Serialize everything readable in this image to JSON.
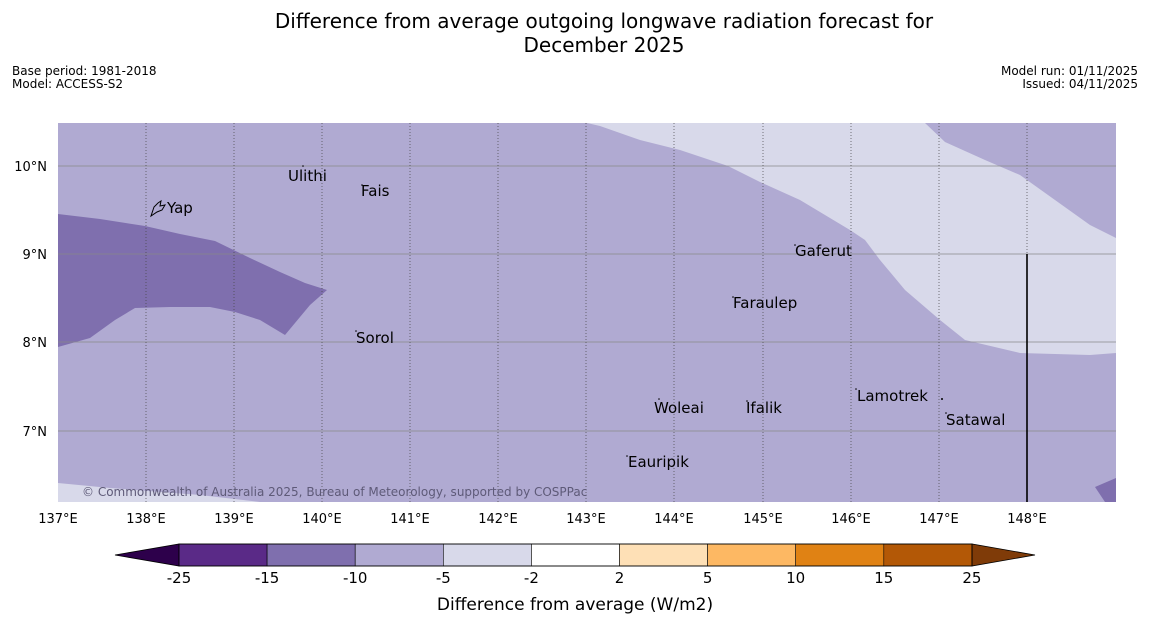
{
  "title_line1": "Difference from average outgoing longwave radiation forecast for",
  "title_line2": "December 2025",
  "meta_left": [
    "Base period: 1981-2018",
    "Model: ACCESS-S2"
  ],
  "meta_right": [
    "Model run: 01/11/2025",
    "Issued: 04/11/2025"
  ],
  "lon_labels": [
    "137°E",
    "138°E",
    "139°E",
    "140°E",
    "141°E",
    "142°E",
    "143°E",
    "144°E",
    "145°E",
    "146°E",
    "147°E",
    "148°E"
  ],
  "lat_labels": [
    "10°N",
    "9°N",
    "8°N",
    "7°N"
  ],
  "places": [
    {
      "name": "Yap"
    },
    {
      "name": "Ulithi"
    },
    {
      "name": "Fais"
    },
    {
      "name": "Sorol"
    },
    {
      "name": "Gaferut"
    },
    {
      "name": "Faraulep"
    },
    {
      "name": "Woleai"
    },
    {
      "name": "Ifalik"
    },
    {
      "name": "Lamotrek"
    },
    {
      "name": "Satawal"
    },
    {
      "name": "Eauripik"
    }
  ],
  "copyright": "© Commonwealth of Australia 2025, Bureau of Meteorology, supported by COSPPac",
  "colorbar": {
    "labels": [
      "-25",
      "-15",
      "-10",
      "-5",
      "-2",
      "2",
      "5",
      "10",
      "15",
      "25"
    ],
    "colors": [
      "#5a2a87",
      "#7f6fae",
      "#b0aad2",
      "#d8d9ea",
      "#ffffff",
      "#fee0b6",
      "#fdb863",
      "#e08214",
      "#b35806"
    ],
    "under_color": "#2d004b",
    "over_color": "#7f3b08",
    "title": "Difference from average (W/m2)"
  },
  "field_colors": {
    "dark": "#7f6fae",
    "mid": "#b0aad2",
    "light": "#d8d9ea"
  }
}
